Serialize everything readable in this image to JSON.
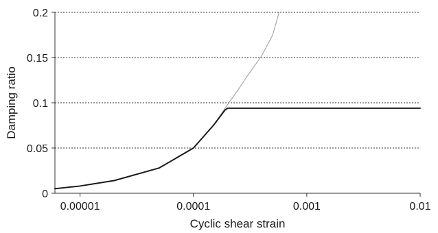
{
  "chart_data": {
    "type": "line",
    "xlabel": "Cyclic shear strain",
    "ylabel": "Damping ratio",
    "xscale": "log",
    "xlim": [
      6e-06,
      0.01
    ],
    "ylim": [
      0,
      0.2
    ],
    "x_tick_labels": [
      "0.00001",
      "0.0001",
      "0.001",
      "0.01"
    ],
    "x_ticks": [
      1e-05,
      0.0001,
      0.001,
      0.01
    ],
    "y_tick_labels": [
      "0",
      "0.05",
      "0.1",
      "0.15",
      "0.2"
    ],
    "y_ticks": [
      0,
      0.05,
      0.1,
      0.15,
      0.2
    ],
    "grid": "horizontal dotted",
    "legend": "none",
    "series": [
      {
        "color": "#999999",
        "style": "thin",
        "x": [
          6e-06,
          1e-05,
          2e-05,
          5e-05,
          0.0001,
          0.00015,
          0.00019,
          0.00025,
          0.0003,
          0.0004,
          0.0005,
          0.00057
        ],
        "y": [
          0.005,
          0.008,
          0.014,
          0.028,
          0.05,
          0.075,
          0.094,
          0.115,
          0.13,
          0.152,
          0.175,
          0.2
        ]
      },
      {
        "color": "#1a1a1a",
        "style": "thick",
        "x": [
          6e-06,
          1e-05,
          2e-05,
          5e-05,
          0.0001,
          0.00015,
          0.00019,
          0.0002,
          0.001,
          0.01
        ],
        "y": [
          0.005,
          0.008,
          0.014,
          0.028,
          0.05,
          0.075,
          0.092,
          0.094,
          0.094,
          0.094
        ]
      }
    ]
  }
}
